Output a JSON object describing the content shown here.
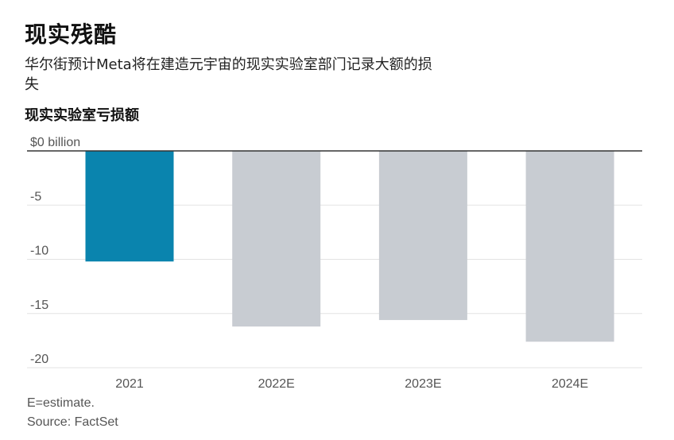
{
  "title": "现实残酷",
  "subtitle": "华尔街预计Meta将在建造元宇宙的现实实验室部门记录大额的损失",
  "chart_data": {
    "type": "bar",
    "title": "现实实验室亏损额",
    "categories": [
      "2021",
      "2022E",
      "2023E",
      "2024E"
    ],
    "values": [
      -10.2,
      -16.2,
      -15.6,
      -17.6
    ],
    "yticks": [
      0,
      -5,
      -10,
      -15,
      -20
    ],
    "ytick_labels": [
      "$0 billion",
      "-5",
      "-10",
      "-15",
      "-20"
    ],
    "ylim": [
      -20,
      0
    ],
    "colors": [
      "#0a84ae",
      "#c8ccd2",
      "#c8ccd2",
      "#c8ccd2"
    ],
    "grid": true
  },
  "footnotes": {
    "estimate": "E=estimate.",
    "source": "Source: FactSet"
  }
}
